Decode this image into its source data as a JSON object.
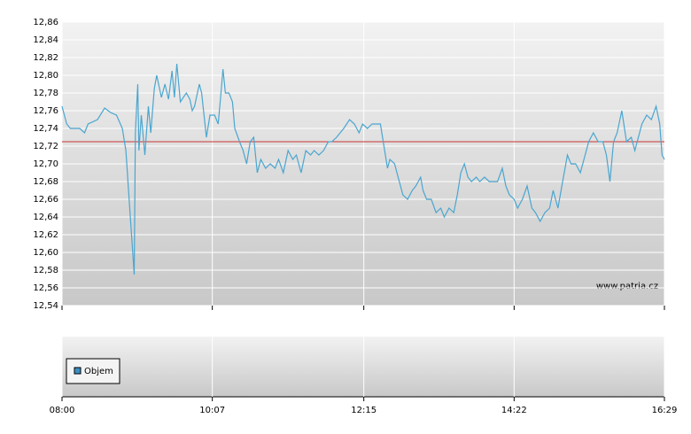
{
  "chart_data": {
    "type": "line",
    "xlim": [
      "08:00",
      "16:29"
    ],
    "xticks": [
      "08:00",
      "10:07",
      "12:15",
      "14:22",
      "16:29"
    ],
    "ylim": [
      12.54,
      12.86
    ],
    "yticks": [
      {
        "value": 12.54,
        "label": "12,54"
      },
      {
        "value": 12.56,
        "label": "12,56"
      },
      {
        "value": 12.58,
        "label": "12,58"
      },
      {
        "value": 12.6,
        "label": "12,60"
      },
      {
        "value": 12.62,
        "label": "12,62"
      },
      {
        "value": 12.64,
        "label": "12,64"
      },
      {
        "value": 12.66,
        "label": "12,66"
      },
      {
        "value": 12.68,
        "label": "12,68"
      },
      {
        "value": 12.7,
        "label": "12,70"
      },
      {
        "value": 12.72,
        "label": "12,72"
      },
      {
        "value": 12.74,
        "label": "12,74"
      },
      {
        "value": 12.76,
        "label": "12,76"
      },
      {
        "value": 12.78,
        "label": "12,78"
      },
      {
        "value": 12.8,
        "label": "12,80"
      },
      {
        "value": 12.82,
        "label": "12,82"
      },
      {
        "value": 12.84,
        "label": "12,84"
      },
      {
        "value": 12.86,
        "label": "12,86"
      }
    ],
    "grid": true,
    "reference_line": {
      "value": 12.725,
      "color": "#cc3333"
    },
    "watermark": "www.patria.cz",
    "volume": {
      "name": "Objem",
      "color": "#3a8fc4"
    },
    "series": [
      {
        "color": "#4aa6d0",
        "x": [
          "08:00",
          "08:04",
          "08:07",
          "08:15",
          "08:19",
          "08:22",
          "08:30",
          "08:36",
          "08:41",
          "08:46",
          "08:51",
          "08:54",
          "08:57",
          "09:01",
          "09:02",
          "09:04",
          "09:05",
          "09:07",
          "09:10",
          "09:13",
          "09:15",
          "09:18",
          "09:20",
          "09:24",
          "09:27",
          "09:30",
          "09:33",
          "09:35",
          "09:37",
          "09:40",
          "09:45",
          "09:48",
          "09:50",
          "09:52",
          "09:56",
          "09:58",
          "10:02",
          "10:05",
          "10:09",
          "10:12",
          "10:14",
          "10:16",
          "10:18",
          "10:21",
          "10:24",
          "10:26",
          "10:30",
          "10:33",
          "10:36",
          "10:39",
          "10:42",
          "10:45",
          "10:48",
          "10:52",
          "10:56",
          "11:00",
          "11:03",
          "11:07",
          "11:11",
          "11:15",
          "11:18",
          "11:22",
          "11:26",
          "11:30",
          "11:33",
          "11:37",
          "11:41",
          "11:45",
          "11:48",
          "11:52",
          "11:58",
          "12:03",
          "12:07",
          "12:11",
          "12:14",
          "12:18",
          "12:22",
          "12:29",
          "12:32",
          "12:35",
          "12:37",
          "12:41",
          "12:44",
          "12:48",
          "12:52",
          "12:56",
          "12:59",
          "13:03",
          "13:05",
          "13:08",
          "13:12",
          "13:16",
          "13:20",
          "13:23",
          "13:27",
          "13:31",
          "13:34",
          "13:37",
          "13:40",
          "13:43",
          "13:46",
          "13:50",
          "13:53",
          "13:57",
          "14:01",
          "14:05",
          "14:08",
          "14:12",
          "14:15",
          "14:18",
          "14:22",
          "14:25",
          "14:29",
          "14:33",
          "14:37",
          "14:40",
          "14:44",
          "14:48",
          "14:52",
          "14:55",
          "14:59",
          "15:03",
          "15:07",
          "15:10",
          "15:14",
          "15:18",
          "15:22",
          "15:25",
          "15:29",
          "15:33",
          "15:37",
          "15:40",
          "15:43",
          "15:46",
          "15:49",
          "15:53",
          "15:57",
          "16:01",
          "16:04",
          "16:07",
          "16:10",
          "16:14",
          "16:18",
          "16:22",
          "16:25",
          "16:27",
          "16:29"
        ],
        "values": [
          12.765,
          12.745,
          12.74,
          12.74,
          12.735,
          12.745,
          12.75,
          12.763,
          12.758,
          12.755,
          12.74,
          12.715,
          12.655,
          12.575,
          12.735,
          12.79,
          12.715,
          12.755,
          12.71,
          12.765,
          12.735,
          12.785,
          12.8,
          12.775,
          12.79,
          12.773,
          12.805,
          12.775,
          12.813,
          12.77,
          12.78,
          12.773,
          12.76,
          12.765,
          12.79,
          12.78,
          12.73,
          12.755,
          12.755,
          12.745,
          12.775,
          12.807,
          12.78,
          12.78,
          12.77,
          12.74,
          12.725,
          12.715,
          12.7,
          12.725,
          12.73,
          12.69,
          12.705,
          12.695,
          12.7,
          12.695,
          12.705,
          12.69,
          12.715,
          12.705,
          12.71,
          12.69,
          12.715,
          12.71,
          12.715,
          12.71,
          12.715,
          12.725,
          12.725,
          12.73,
          12.74,
          12.75,
          12.745,
          12.735,
          12.745,
          12.74,
          12.745,
          12.745,
          12.72,
          12.695,
          12.705,
          12.7,
          12.685,
          12.665,
          12.66,
          12.67,
          12.675,
          12.685,
          12.67,
          12.66,
          12.66,
          12.645,
          12.65,
          12.64,
          12.65,
          12.645,
          12.665,
          12.69,
          12.7,
          12.685,
          12.68,
          12.685,
          12.68,
          12.685,
          12.68,
          12.68,
          12.68,
          12.695,
          12.675,
          12.665,
          12.66,
          12.65,
          12.66,
          12.675,
          12.65,
          12.645,
          12.635,
          12.645,
          12.65,
          12.67,
          12.65,
          12.68,
          12.71,
          12.7,
          12.7,
          12.69,
          12.71,
          12.725,
          12.735,
          12.725,
          12.725,
          12.71,
          12.68,
          12.725,
          12.735,
          12.76,
          12.725,
          12.73,
          12.715,
          12.73,
          12.745,
          12.755,
          12.75,
          12.765,
          12.745,
          12.71,
          12.705
        ]
      }
    ]
  }
}
